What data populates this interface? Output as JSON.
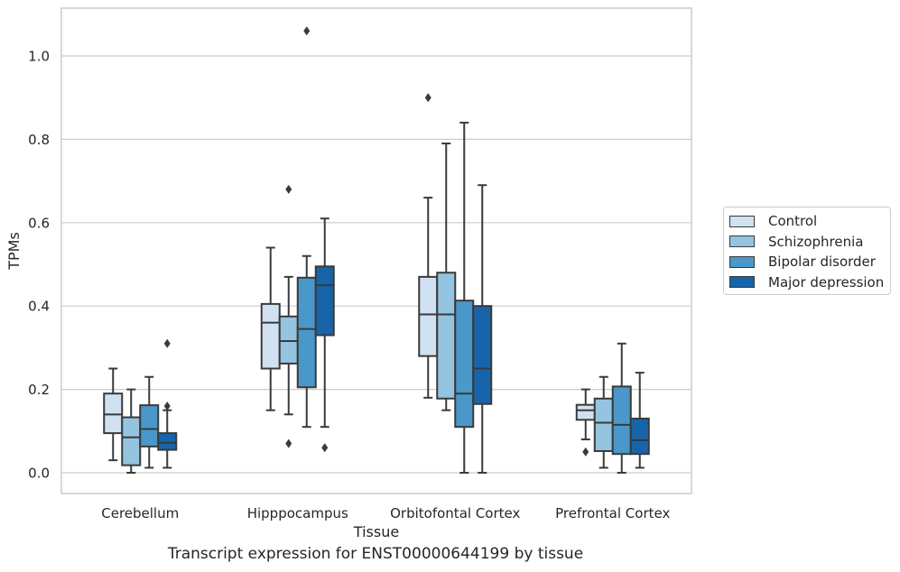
{
  "chart_data": {
    "type": "box",
    "title": "",
    "caption": "Transcript expression for ENST00000644199 by tissue",
    "xlabel": "Tissue",
    "ylabel": "TPMs",
    "ylim": [
      -0.05,
      1.12
    ],
    "yticks": [
      "0.0",
      "0.2",
      "0.4",
      "0.6",
      "0.8",
      "1.0"
    ],
    "grid": "horizontal",
    "legend_position": "right",
    "categories": [
      "Cerebellum",
      "Hipppocampus",
      "Orbitofontal Cortex",
      "Prefrontal Cortex"
    ],
    "series": [
      {
        "name": "Control",
        "color": "#d0e1f2",
        "boxes": [
          {
            "whislo": 0.03,
            "q1": 0.095,
            "med": 0.14,
            "q3": 0.19,
            "whishi": 0.25,
            "fliers": []
          },
          {
            "whislo": 0.15,
            "q1": 0.25,
            "med": 0.36,
            "q3": 0.405,
            "whishi": 0.54,
            "fliers": []
          },
          {
            "whislo": 0.18,
            "q1": 0.28,
            "med": 0.38,
            "q3": 0.47,
            "whishi": 0.66,
            "fliers": [
              0.9
            ]
          },
          {
            "whislo": 0.08,
            "q1": 0.127,
            "med": 0.15,
            "q3": 0.163,
            "whishi": 0.2,
            "fliers": [
              0.05
            ]
          }
        ]
      },
      {
        "name": "Schizophrenia",
        "color": "#94c4df",
        "boxes": [
          {
            "whislo": 0.0,
            "q1": 0.018,
            "med": 0.085,
            "q3": 0.133,
            "whishi": 0.2,
            "fliers": []
          },
          {
            "whislo": 0.14,
            "q1": 0.262,
            "med": 0.316,
            "q3": 0.375,
            "whishi": 0.47,
            "fliers": [
              0.07,
              0.68
            ]
          },
          {
            "whislo": 0.15,
            "q1": 0.178,
            "med": 0.38,
            "q3": 0.48,
            "whishi": 0.79,
            "fliers": []
          },
          {
            "whislo": 0.012,
            "q1": 0.052,
            "med": 0.12,
            "q3": 0.178,
            "whishi": 0.23,
            "fliers": []
          }
        ]
      },
      {
        "name": "Bipolar disorder",
        "color": "#4a98c9",
        "boxes": [
          {
            "whislo": 0.012,
            "q1": 0.063,
            "med": 0.105,
            "q3": 0.162,
            "whishi": 0.23,
            "fliers": []
          },
          {
            "whislo": 0.11,
            "q1": 0.205,
            "med": 0.345,
            "q3": 0.468,
            "whishi": 0.52,
            "fliers": [
              1.06
            ]
          },
          {
            "whislo": 0.0,
            "q1": 0.11,
            "med": 0.19,
            "q3": 0.413,
            "whishi": 0.84,
            "fliers": []
          },
          {
            "whislo": 0.0,
            "q1": 0.045,
            "med": 0.115,
            "q3": 0.207,
            "whishi": 0.31,
            "fliers": []
          }
        ]
      },
      {
        "name": "Major depression",
        "color": "#1764ab",
        "boxes": [
          {
            "whislo": 0.012,
            "q1": 0.055,
            "med": 0.072,
            "q3": 0.095,
            "whishi": 0.15,
            "fliers": [
              0.16,
              0.31
            ]
          },
          {
            "whislo": 0.11,
            "q1": 0.33,
            "med": 0.45,
            "q3": 0.495,
            "whishi": 0.61,
            "fliers": [
              0.06
            ]
          },
          {
            "whislo": 0.0,
            "q1": 0.165,
            "med": 0.25,
            "q3": 0.4,
            "whishi": 0.69,
            "fliers": []
          },
          {
            "whislo": 0.012,
            "q1": 0.045,
            "med": 0.078,
            "q3": 0.13,
            "whishi": 0.24,
            "fliers": []
          }
        ]
      }
    ]
  }
}
